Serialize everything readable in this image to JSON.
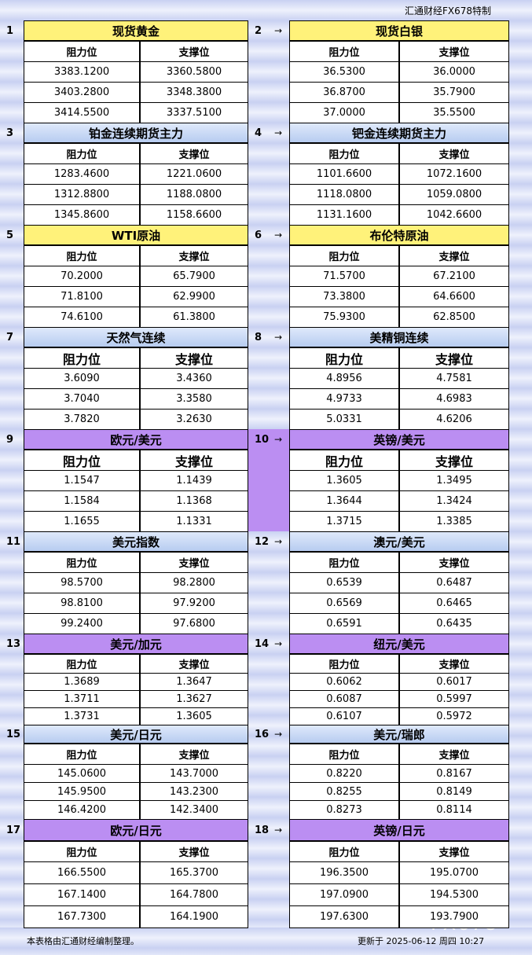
{
  "header": {
    "brand": "汇通财经FX678特制"
  },
  "panels": [
    {
      "number": "1",
      "title": "现货黄金",
      "columns": [
        "阻力位",
        "支撑位"
      ],
      "rows": [
        [
          "3383.1200",
          "3360.5800"
        ],
        [
          "3403.2800",
          "3348.3800"
        ],
        [
          "3414.5500",
          "3337.5100"
        ]
      ]
    },
    {
      "number": "2",
      "title": "现货白银",
      "columns": [
        "阻力位",
        "支撑位"
      ],
      "rows": [
        [
          "36.5300",
          "36.0000"
        ],
        [
          "36.8700",
          "35.7900"
        ],
        [
          "37.0000",
          "35.5500"
        ]
      ]
    },
    {
      "number": "3",
      "title": "铂金连续期货主力",
      "columns": [
        "阻力位",
        "支撑位"
      ],
      "rows": [
        [
          "1283.4600",
          "1221.0600"
        ],
        [
          "1312.8800",
          "1188.0800"
        ],
        [
          "1345.8600",
          "1158.6600"
        ]
      ]
    },
    {
      "number": "4",
      "title": "钯金连续期货主力",
      "columns": [
        "阻力位",
        "支撑位"
      ],
      "rows": [
        [
          "1101.6600",
          "1072.1600"
        ],
        [
          "1118.0800",
          "1059.0800"
        ],
        [
          "1131.1600",
          "1042.6600"
        ]
      ]
    },
    {
      "number": "5",
      "title": "WTI原油",
      "columns": [
        "阻力位",
        "支撑位"
      ],
      "rows": [
        [
          "70.2000",
          "65.7900"
        ],
        [
          "71.8100",
          "62.9900"
        ],
        [
          "74.6100",
          "61.3800"
        ]
      ]
    },
    {
      "number": "6",
      "title": "布伦特原油",
      "columns": [
        "阻力位",
        "支撑位"
      ],
      "rows": [
        [
          "71.5700",
          "67.2100"
        ],
        [
          "73.3800",
          "64.6600"
        ],
        [
          "75.9300",
          "62.8500"
        ]
      ]
    },
    {
      "number": "7",
      "title": "天然气连续",
      "columns": [
        "阻力位",
        "支撑位"
      ],
      "rows": [
        [
          "3.6090",
          "3.4360"
        ],
        [
          "3.7040",
          "3.3580"
        ],
        [
          "3.7820",
          "3.2630"
        ]
      ]
    },
    {
      "number": "8",
      "title": "美精铜连续",
      "columns": [
        "阻力位",
        "支撑位"
      ],
      "rows": [
        [
          "4.8956",
          "4.7581"
        ],
        [
          "4.9733",
          "4.6983"
        ],
        [
          "5.0331",
          "4.6206"
        ]
      ]
    },
    {
      "number": "9",
      "title": "欧元/美元",
      "columns": [
        "阻力位",
        "支撑位"
      ],
      "rows": [
        [
          "1.1547",
          "1.1439"
        ],
        [
          "1.1584",
          "1.1368"
        ],
        [
          "1.1655",
          "1.1331"
        ]
      ]
    },
    {
      "number": "10",
      "title": "英镑/美元",
      "columns": [
        "阻力位",
        "支撑位"
      ],
      "rows": [
        [
          "1.3605",
          "1.3495"
        ],
        [
          "1.3644",
          "1.3424"
        ],
        [
          "1.3715",
          "1.3385"
        ]
      ]
    },
    {
      "number": "11",
      "title": "美元指数",
      "columns": [
        "阻力位",
        "支撑位"
      ],
      "rows": [
        [
          "98.5700",
          "98.2800"
        ],
        [
          "98.8100",
          "97.9200"
        ],
        [
          "99.2400",
          "97.6800"
        ]
      ]
    },
    {
      "number": "12",
      "title": "澳元/美元",
      "columns": [
        "阻力位",
        "支撑位"
      ],
      "rows": [
        [
          "0.6539",
          "0.6487"
        ],
        [
          "0.6569",
          "0.6465"
        ],
        [
          "0.6591",
          "0.6435"
        ]
      ]
    },
    {
      "number": "13",
      "title": "美元/加元",
      "columns": [
        "阻力位",
        "支撑位"
      ],
      "rows": [
        [
          "1.3689",
          "1.3647"
        ],
        [
          "1.3711",
          "1.3627"
        ],
        [
          "1.3731",
          "1.3605"
        ]
      ]
    },
    {
      "number": "14",
      "title": "纽元/美元",
      "columns": [
        "阻力位",
        "支撑位"
      ],
      "rows": [
        [
          "0.6062",
          "0.6017"
        ],
        [
          "0.6087",
          "0.5997"
        ],
        [
          "0.6107",
          "0.5972"
        ]
      ]
    },
    {
      "number": "15",
      "title": "美元/日元",
      "columns": [
        "阻力位",
        "支撑位"
      ],
      "rows": [
        [
          "145.0600",
          "143.7000"
        ],
        [
          "145.9500",
          "143.2300"
        ],
        [
          "146.4200",
          "142.3400"
        ]
      ]
    },
    {
      "number": "16",
      "title": "美元/瑞郎",
      "columns": [
        "阻力位",
        "支撑位"
      ],
      "rows": [
        [
          "0.8220",
          "0.8167"
        ],
        [
          "0.8255",
          "0.8149"
        ],
        [
          "0.8273",
          "0.8114"
        ]
      ]
    },
    {
      "number": "17",
      "title": "欧元/日元",
      "columns": [
        "阻力位",
        "支撑位"
      ],
      "rows": [
        [
          "166.5500",
          "165.3700"
        ],
        [
          "167.1400",
          "164.7800"
        ],
        [
          "167.7300",
          "164.1900"
        ]
      ]
    },
    {
      "number": "18",
      "title": "英镑/日元",
      "columns": [
        "阻力位",
        "支撑位"
      ],
      "rows": [
        [
          "196.3500",
          "195.0700"
        ],
        [
          "197.0900",
          "194.5300"
        ],
        [
          "197.6300",
          "193.7900"
        ]
      ]
    }
  ],
  "footer": {
    "note": "本表格由汇通财经编制整理。",
    "updated": "更新于 2025-06-12 周四 10:27",
    "watermark": "FX678"
  }
}
